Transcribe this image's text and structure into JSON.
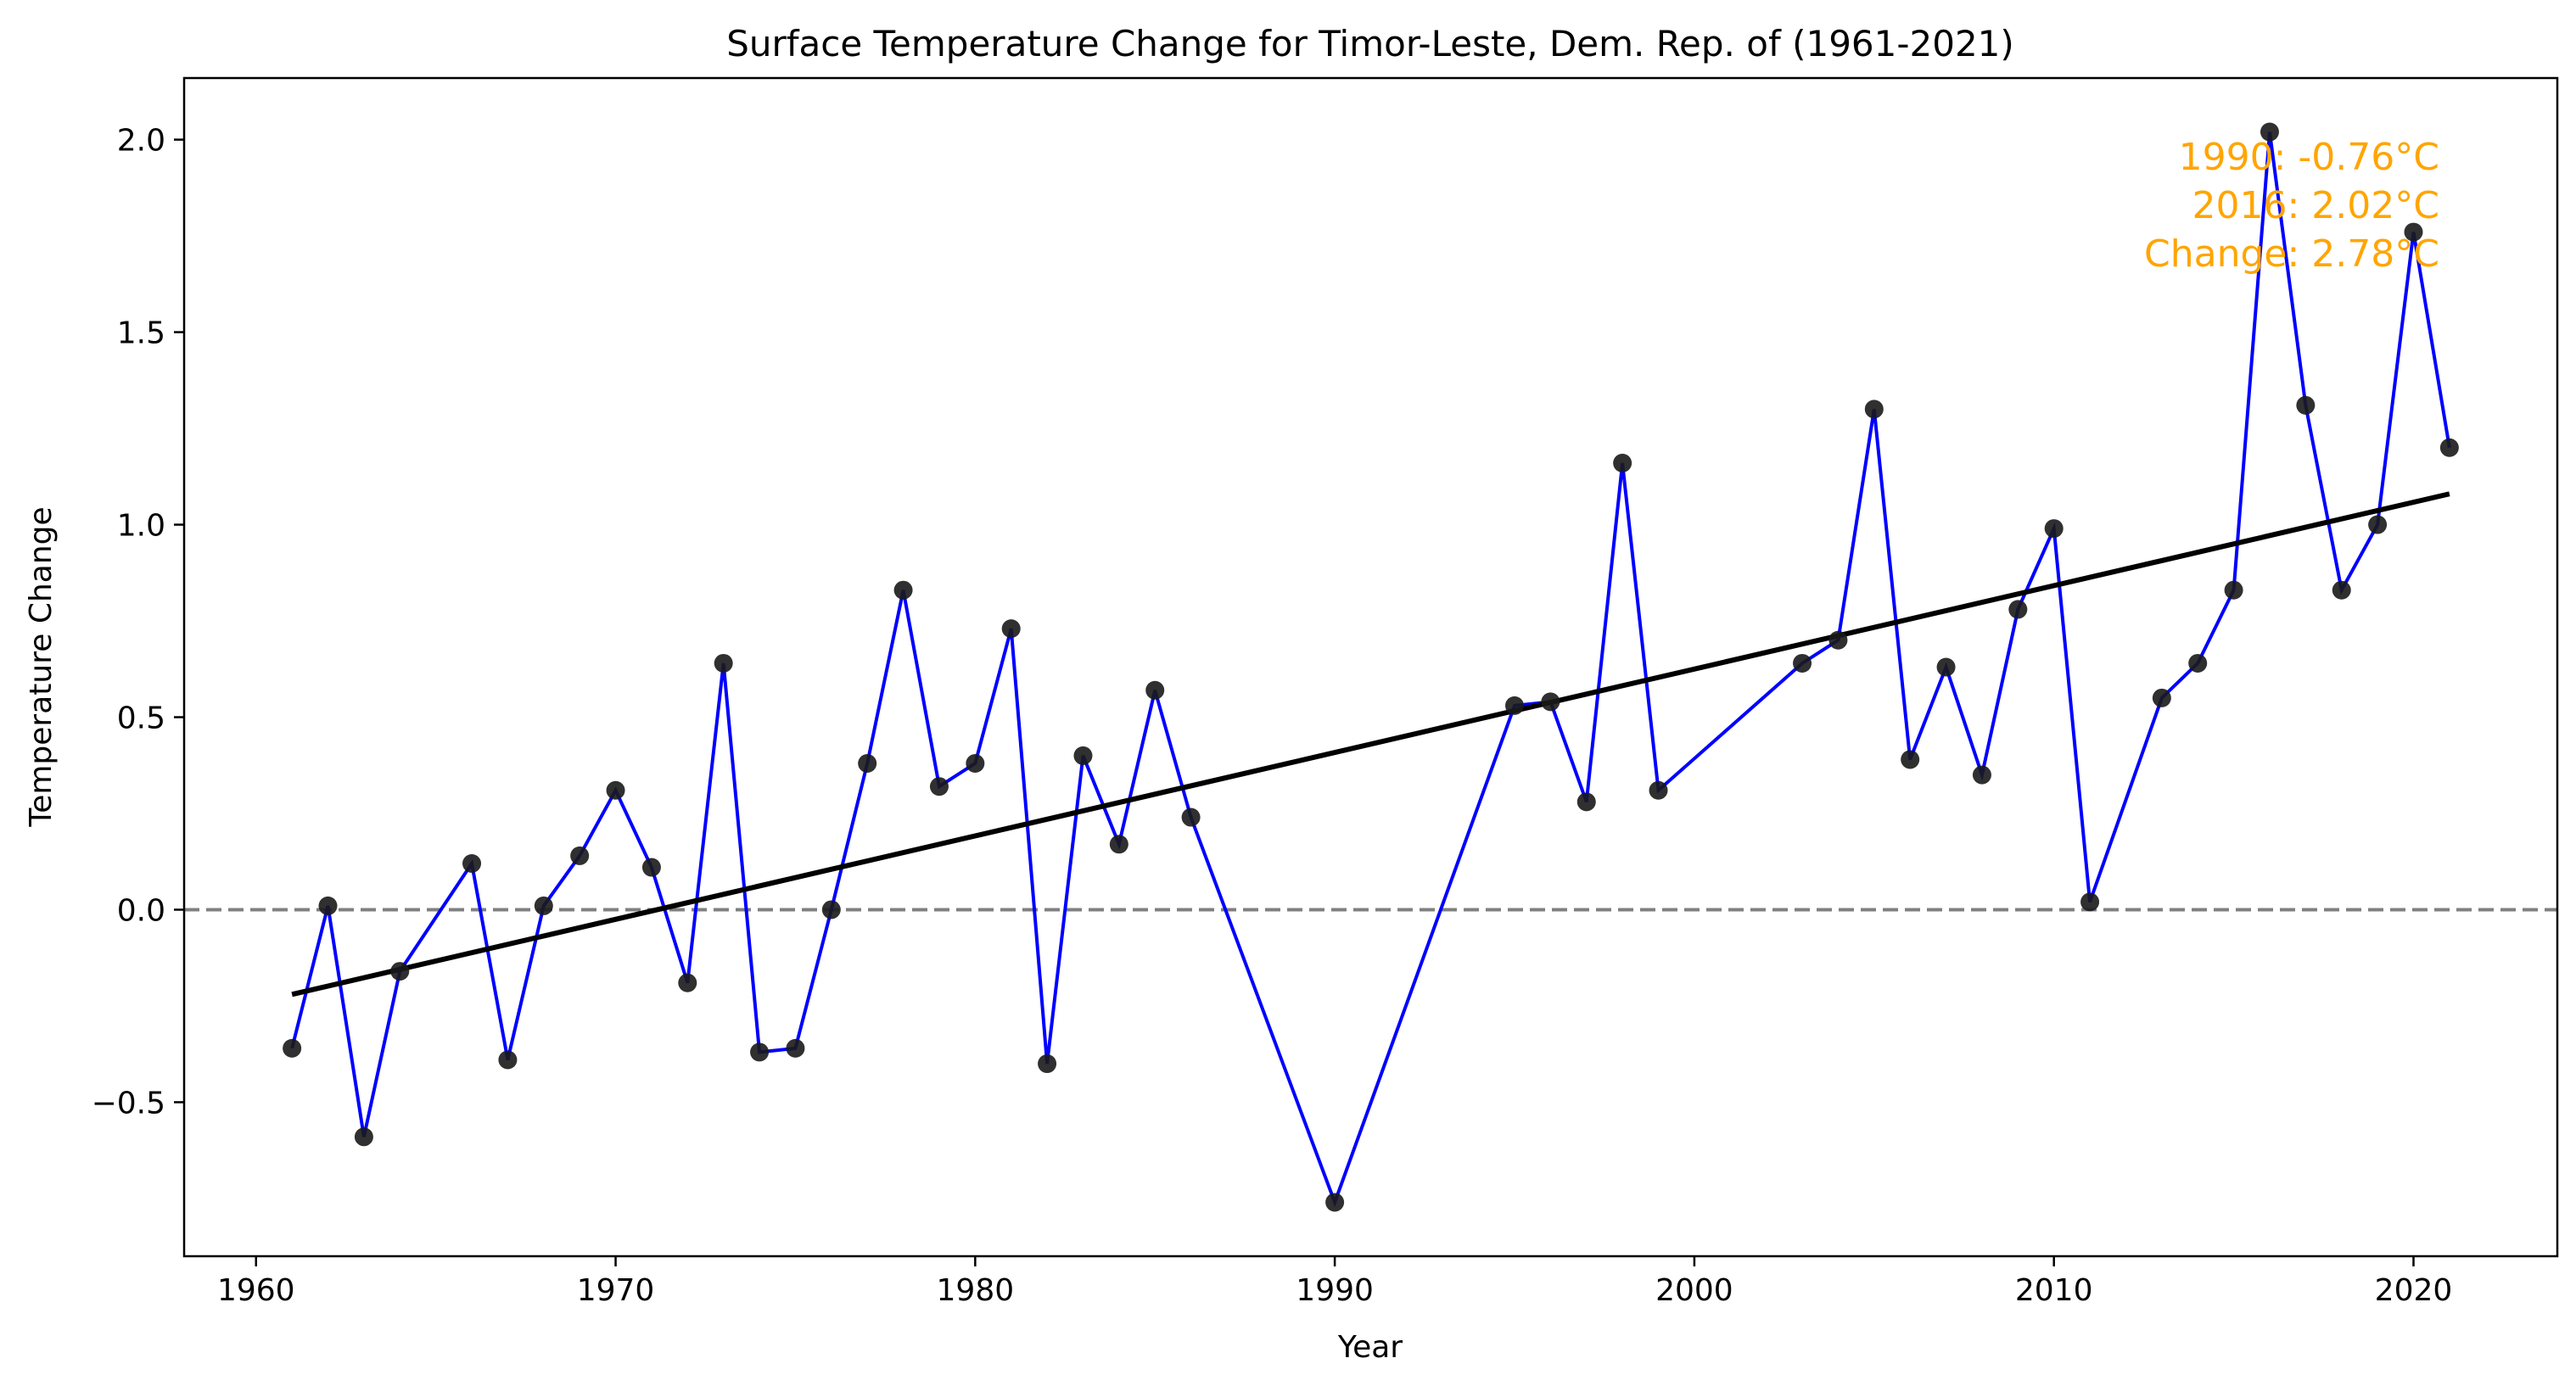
{
  "chart_data": {
    "type": "line",
    "title": "Surface Temperature Change for Timor-Leste, Dem. Rep. of (1961-2021)",
    "xlabel": "Year",
    "ylabel": "Temperature Change",
    "xlim": [
      1958,
      2024
    ],
    "ylim": [
      -0.9,
      2.16
    ],
    "x_ticks": [
      1960,
      1970,
      1980,
      1990,
      2000,
      2010,
      2020
    ],
    "y_ticks": [
      -0.5,
      0.0,
      0.5,
      1.0,
      1.5,
      2.0
    ],
    "y_tick_labels": [
      "−0.5",
      "0.0",
      "0.5",
      "1.0",
      "1.5",
      "2.0"
    ],
    "x_tick_labels": [
      "1960",
      "1970",
      "1980",
      "1990",
      "2000",
      "2010",
      "2020"
    ],
    "grid": false,
    "series": [
      {
        "x": [
          1961,
          1962,
          1963,
          1964,
          1966,
          1967,
          1968,
          1969,
          1970,
          1971,
          1972,
          1973,
          1974,
          1975,
          1976,
          1977,
          1978,
          1979,
          1980,
          1981,
          1982,
          1983,
          1984,
          1985,
          1986,
          1990,
          1995,
          1996,
          1997,
          1998,
          1999,
          2003,
          2004,
          2005,
          2006,
          2007,
          2008,
          2009,
          2010,
          2011,
          2013,
          2014,
          2015,
          2016,
          2017,
          2018,
          2019,
          2020,
          2021
        ],
        "values": [
          -0.36,
          0.01,
          -0.59,
          -0.16,
          0.12,
          -0.39,
          0.01,
          0.14,
          0.31,
          0.11,
          -0.19,
          0.64,
          -0.37,
          -0.36,
          0.0,
          0.38,
          0.83,
          0.32,
          0.38,
          0.73,
          -0.4,
          0.4,
          0.17,
          0.57,
          0.24,
          -0.76,
          0.53,
          0.54,
          0.28,
          1.16,
          0.31,
          0.64,
          0.7,
          1.3,
          0.39,
          0.63,
          0.35,
          0.78,
          0.99,
          0.02,
          0.55,
          0.64,
          0.83,
          2.02,
          1.31,
          0.83,
          1.0,
          1.76,
          1.2
        ],
        "color": "#0000ff",
        "marker_color": "#1a1a1a"
      }
    ],
    "trend_line": {
      "x": [
        1961,
        2021
      ],
      "values": [
        -0.22,
        1.08
      ],
      "color": "#000000"
    },
    "reference_line": {
      "y": 0.0,
      "style": "dashed",
      "color": "#808080"
    },
    "annotations": {
      "lines": [
        "1990: -0.76°C",
        "2016: 2.02°C",
        "Change: 2.78°C"
      ],
      "color": "#ffa500",
      "placement": "top-right"
    }
  }
}
